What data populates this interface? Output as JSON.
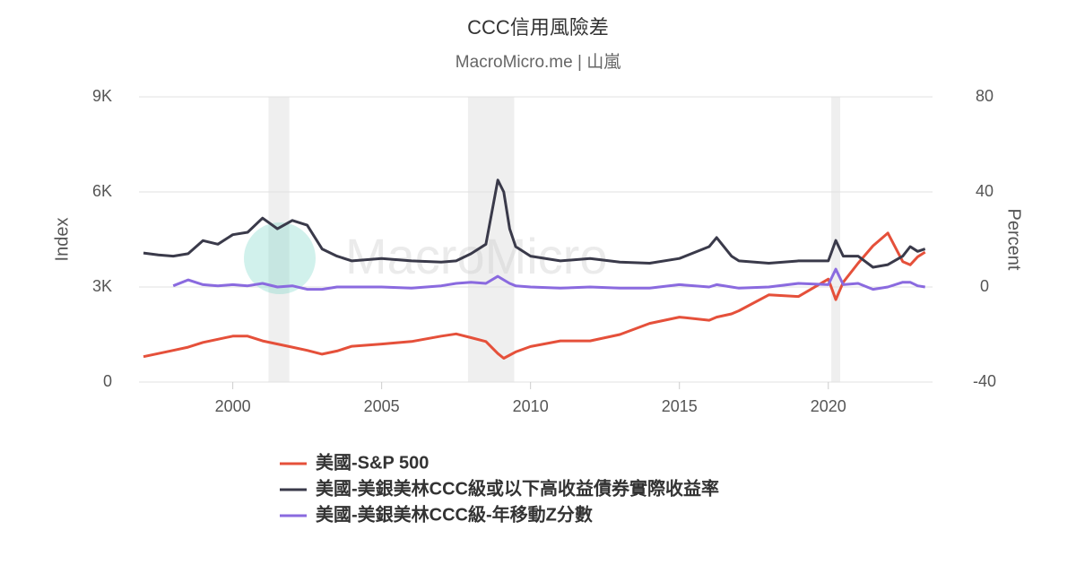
{
  "chart_data": {
    "type": "line",
    "title": "CCC信用風險差",
    "subtitle": "MacroMicro.me | 山嵐",
    "watermark": "MacroMicro",
    "y_label": "Index",
    "y2_label": "Percent",
    "xlim": [
      1996.85,
      2023.5
    ],
    "xticks": [
      2000,
      2005,
      2010,
      2015,
      2020
    ],
    "ylim": [
      0,
      9000
    ],
    "yticks": [
      0,
      {
        "value": 3000,
        "label": "3K"
      },
      {
        "value": 6000,
        "label": "6K"
      },
      {
        "value": 9000,
        "label": "9K"
      }
    ],
    "y2lim": [
      -40,
      80
    ],
    "y2ticks": [
      -40,
      0,
      40,
      80
    ],
    "grid": true,
    "shaded_ranges": [
      [
        2001.2,
        2001.9
      ],
      [
        2007.9,
        2009.45
      ],
      [
        2020.1,
        2020.4
      ]
    ],
    "legend": "bottom",
    "x": [
      1997,
      1997.5,
      1998,
      1998.5,
      1999,
      1999.5,
      2000,
      2000.5,
      2001,
      2001.5,
      2002,
      2002.5,
      2003,
      2003.5,
      2004,
      2005,
      2006,
      2007,
      2007.5,
      2008,
      2008.5,
      2008.9,
      2009.1,
      2009.3,
      2009.5,
      2010,
      2011,
      2012,
      2013,
      2014,
      2015,
      2016,
      2016.25,
      2016.75,
      2017,
      2018,
      2019,
      2020,
      2020.25,
      2020.5,
      2021,
      2021.5,
      2022,
      2022.5,
      2022.75,
      2023,
      2023.25
    ],
    "series": [
      {
        "name": "美國-S&P 500",
        "color": "#e5503a",
        "axis": "y",
        "values": [
          800,
          900,
          1000,
          1100,
          1250,
          1350,
          1450,
          1450,
          1300,
          1200,
          1100,
          1000,
          880,
          980,
          1130,
          1200,
          1280,
          1450,
          1520,
          1400,
          1280,
          900,
          750,
          850,
          950,
          1120,
          1300,
          1300,
          1500,
          1850,
          2050,
          1950,
          2050,
          2150,
          2250,
          2750,
          2700,
          3250,
          2600,
          3150,
          3750,
          4300,
          4700,
          3800,
          3700,
          3950,
          4100
        ]
      },
      {
        "name": "美國-美銀美林CCC級或以下高收益債券實際收益率",
        "color": "#3a3a4a",
        "axis": "y2",
        "values": [
          14.3,
          13.5,
          13,
          14,
          19.5,
          18,
          22,
          23,
          29,
          24.5,
          28,
          26,
          16,
          13,
          11,
          12,
          11,
          10.5,
          11,
          14,
          18,
          45,
          40,
          24.5,
          17,
          13,
          11,
          12,
          10.5,
          10,
          12,
          17,
          20.8,
          13,
          11,
          10,
          11,
          11,
          19.6,
          13,
          13,
          8.3,
          9.4,
          13,
          17,
          15,
          16
        ]
      },
      {
        "name": "美國-美銀美林CCC級-年移動Z分數",
        "color": "#8a6adf",
        "axis": "y2",
        "values": [
          null,
          null,
          0.5,
          3,
          1,
          0.5,
          1,
          0.5,
          1.5,
          0,
          0.5,
          -1,
          -1,
          0,
          0,
          0,
          -0.5,
          0.5,
          1.5,
          2,
          1.5,
          4.5,
          3,
          1.5,
          0.5,
          0,
          -0.5,
          0,
          -0.5,
          -0.5,
          1,
          0,
          1,
          0,
          -0.5,
          0,
          1.5,
          1,
          7.5,
          1,
          1.5,
          -1,
          0,
          2,
          2,
          0.5,
          0
        ]
      }
    ]
  }
}
